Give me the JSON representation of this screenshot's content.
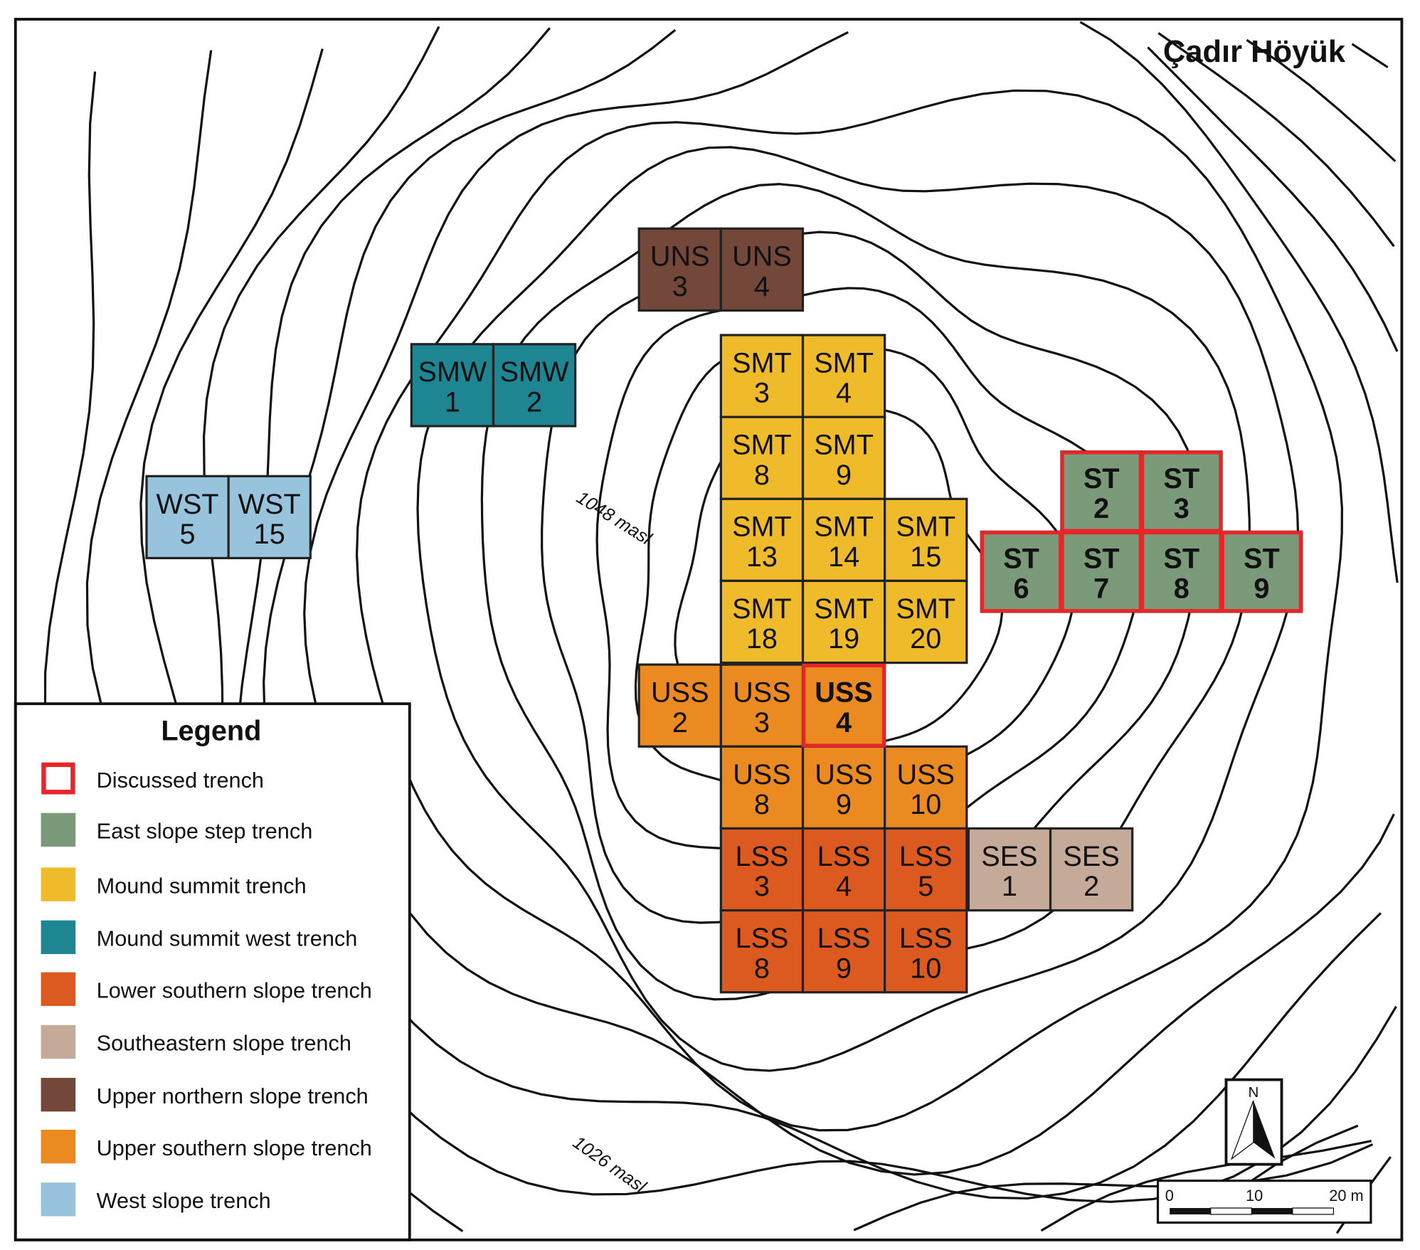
{
  "map": {
    "title": "Çadır Höyük",
    "contour_labels": [
      "1048 masl",
      "1026 masl"
    ],
    "north_label": "N",
    "scale_bar": {
      "labels": [
        "0",
        "10",
        "20 m"
      ]
    }
  },
  "colors": {
    "discussed": "#e8262a",
    "east_slope_step": "#7a9a7a",
    "mound_summit": "#efbb2a",
    "mound_summit_west": "#1e8593",
    "lower_southern_slope": "#dc5a20",
    "southeastern_slope": "#c5aa99",
    "upper_northern_slope": "#73473a",
    "upper_southern_slope": "#ec8a22",
    "west_slope": "#98c3dc"
  },
  "legend": {
    "title": "Legend",
    "items": [
      {
        "label": "Discussed trench",
        "key": "discussed",
        "outline": true
      },
      {
        "label": "East slope step trench",
        "key": "east_slope_step"
      },
      {
        "label": "Mound summit trench",
        "key": "mound_summit"
      },
      {
        "label": "Mound summit west trench",
        "key": "mound_summit_west"
      },
      {
        "label": "Lower southern slope trench",
        "key": "lower_southern_slope"
      },
      {
        "label": "Southeastern slope trench",
        "key": "southeastern_slope"
      },
      {
        "label": "Upper northern slope trench",
        "key": "upper_northern_slope"
      },
      {
        "label": "Upper southern slope trench",
        "key": "upper_southern_slope"
      },
      {
        "label": "West slope trench",
        "key": "west_slope"
      }
    ]
  },
  "trenches": [
    {
      "id": "UNS3",
      "line1": "UNS",
      "line2": "3",
      "type": "upper_northern_slope",
      "discussed": false
    },
    {
      "id": "UNS4",
      "line1": "UNS",
      "line2": "4",
      "type": "upper_northern_slope",
      "discussed": false
    },
    {
      "id": "SMW1",
      "line1": "SMW",
      "line2": "1",
      "type": "mound_summit_west",
      "discussed": false
    },
    {
      "id": "SMW2",
      "line1": "SMW",
      "line2": "2",
      "type": "mound_summit_west",
      "discussed": false
    },
    {
      "id": "WST5",
      "line1": "WST",
      "line2": "5",
      "type": "west_slope",
      "discussed": false
    },
    {
      "id": "WST15",
      "line1": "WST",
      "line2": "15",
      "type": "west_slope",
      "discussed": false
    },
    {
      "id": "SMT3",
      "line1": "SMT",
      "line2": "3",
      "type": "mound_summit",
      "discussed": false
    },
    {
      "id": "SMT4",
      "line1": "SMT",
      "line2": "4",
      "type": "mound_summit",
      "discussed": false
    },
    {
      "id": "SMT8",
      "line1": "SMT",
      "line2": "8",
      "type": "mound_summit",
      "discussed": false
    },
    {
      "id": "SMT9",
      "line1": "SMT",
      "line2": "9",
      "type": "mound_summit",
      "discussed": false
    },
    {
      "id": "SMT13",
      "line1": "SMT",
      "line2": "13",
      "type": "mound_summit",
      "discussed": false
    },
    {
      "id": "SMT14",
      "line1": "SMT",
      "line2": "14",
      "type": "mound_summit",
      "discussed": false
    },
    {
      "id": "SMT15",
      "line1": "SMT",
      "line2": "15",
      "type": "mound_summit",
      "discussed": false
    },
    {
      "id": "SMT18",
      "line1": "SMT",
      "line2": "18",
      "type": "mound_summit",
      "discussed": false
    },
    {
      "id": "SMT19",
      "line1": "SMT",
      "line2": "19",
      "type": "mound_summit",
      "discussed": false
    },
    {
      "id": "SMT20",
      "line1": "SMT",
      "line2": "20",
      "type": "mound_summit",
      "discussed": false
    },
    {
      "id": "USS2",
      "line1": "USS",
      "line2": "2",
      "type": "upper_southern_slope",
      "discussed": false
    },
    {
      "id": "USS3",
      "line1": "USS",
      "line2": "3",
      "type": "upper_southern_slope",
      "discussed": false
    },
    {
      "id": "USS4",
      "line1": "USS",
      "line2": "4",
      "type": "upper_southern_slope",
      "discussed": true
    },
    {
      "id": "USS8",
      "line1": "USS",
      "line2": "8",
      "type": "upper_southern_slope",
      "discussed": false
    },
    {
      "id": "USS9",
      "line1": "USS",
      "line2": "9",
      "type": "upper_southern_slope",
      "discussed": false
    },
    {
      "id": "USS10",
      "line1": "USS",
      "line2": "10",
      "type": "upper_southern_slope",
      "discussed": false
    },
    {
      "id": "LSS3",
      "line1": "LSS",
      "line2": "3",
      "type": "lower_southern_slope",
      "discussed": false
    },
    {
      "id": "LSS4",
      "line1": "LSS",
      "line2": "4",
      "type": "lower_southern_slope",
      "discussed": false
    },
    {
      "id": "LSS5",
      "line1": "LSS",
      "line2": "5",
      "type": "lower_southern_slope",
      "discussed": false
    },
    {
      "id": "LSS8",
      "line1": "LSS",
      "line2": "8",
      "type": "lower_southern_slope",
      "discussed": false
    },
    {
      "id": "LSS9",
      "line1": "LSS",
      "line2": "9",
      "type": "lower_southern_slope",
      "discussed": false
    },
    {
      "id": "LSS10",
      "line1": "LSS",
      "line2": "10",
      "type": "lower_southern_slope",
      "discussed": false
    },
    {
      "id": "SES1",
      "line1": "SES",
      "line2": "1",
      "type": "southeastern_slope",
      "discussed": false
    },
    {
      "id": "SES2",
      "line1": "SES",
      "line2": "2",
      "type": "southeastern_slope",
      "discussed": false
    },
    {
      "id": "ST2",
      "line1": "ST",
      "line2": "2",
      "type": "east_slope_step",
      "discussed": true
    },
    {
      "id": "ST3",
      "line1": "ST",
      "line2": "3",
      "type": "east_slope_step",
      "discussed": true
    },
    {
      "id": "ST6",
      "line1": "ST",
      "line2": "6",
      "type": "east_slope_step",
      "discussed": true
    },
    {
      "id": "ST7",
      "line1": "ST",
      "line2": "7",
      "type": "east_slope_step",
      "discussed": true
    },
    {
      "id": "ST8",
      "line1": "ST",
      "line2": "8",
      "type": "east_slope_step",
      "discussed": true
    },
    {
      "id": "ST9",
      "line1": "ST",
      "line2": "9",
      "type": "east_slope_step",
      "discussed": true
    }
  ]
}
